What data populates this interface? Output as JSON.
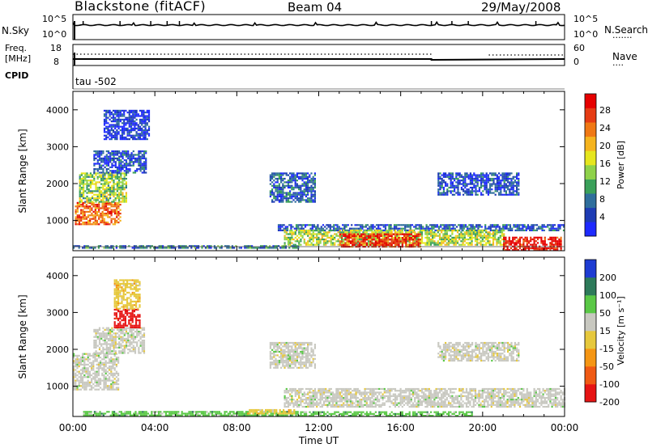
{
  "header": {
    "station": "Blackstone (fitACF)",
    "beam": "Beam 04",
    "date": "29/May/2008"
  },
  "top_panel": {
    "left_label": "N.Sky",
    "left_ticks": [
      "10^5",
      "10^0"
    ],
    "right_ticks": [
      "10^5",
      "10^0"
    ],
    "right_label": "N.Search",
    "right_legend_line": "......."
  },
  "freq_panel": {
    "left_label_1": "Freq.",
    "left_label_2": "[MHz]",
    "left_ticks": [
      "18",
      "8"
    ],
    "right_ticks": [
      "60",
      "0"
    ],
    "right_label": "Nave",
    "right_legend_line": "....",
    "cpid_label": "CPID",
    "cpid_value": "tau  -502"
  },
  "time_axis": {
    "label": "Time UT",
    "ticks": [
      "00:00",
      "04:00",
      "08:00",
      "12:00",
      "16:00",
      "20:00",
      "00:00"
    ]
  },
  "chart_data": [
    {
      "type": "heatmap",
      "name": "power",
      "ylabel": "Slant Range [km]",
      "yticks": [
        "4000",
        "3000",
        "2000",
        "1000"
      ],
      "ylim": [
        180,
        4500
      ],
      "xlim_hours": [
        0,
        24
      ],
      "colorbar": {
        "label": "Power [dB]",
        "ticks": [
          "28",
          "24",
          "20",
          "16",
          "12",
          "8",
          "4"
        ],
        "colors": [
          "#1e2aff",
          "#1e3cb4",
          "#2f6e9c",
          "#3aa05a",
          "#8fd24a",
          "#e6e61e",
          "#f5b41e",
          "#f07814",
          "#e63c14",
          "#e60000"
        ]
      },
      "regions": [
        {
          "t": [
            0.1,
            2.3
          ],
          "r": [
            900,
            1500
          ],
          "level": 0.8
        },
        {
          "t": [
            0.3,
            2.6
          ],
          "r": [
            1500,
            2300
          ],
          "level": 0.45
        },
        {
          "t": [
            1.0,
            3.6
          ],
          "r": [
            2300,
            2900
          ],
          "level": 0.15
        },
        {
          "t": [
            1.5,
            3.7
          ],
          "r": [
            3200,
            4000
          ],
          "level": 0.1
        },
        {
          "t": [
            0.0,
            11.0
          ],
          "r": [
            250,
            330
          ],
          "level": 0.25
        },
        {
          "t": [
            10.0,
            24.0
          ],
          "r": [
            750,
            900
          ],
          "level": 0.2
        },
        {
          "t": [
            10.3,
            21.0
          ],
          "r": [
            330,
            750
          ],
          "level": 0.5
        },
        {
          "t": [
            13.0,
            17.0
          ],
          "r": [
            300,
            650
          ],
          "level": 0.9
        },
        {
          "t": [
            21.0,
            23.8
          ],
          "r": [
            200,
            560
          ],
          "level": 0.95
        },
        {
          "t": [
            9.6,
            11.8
          ],
          "r": [
            1500,
            2300
          ],
          "level": 0.2
        },
        {
          "t": [
            17.8,
            21.8
          ],
          "r": [
            1700,
            2300
          ],
          "level": 0.15
        }
      ]
    },
    {
      "type": "heatmap",
      "name": "velocity",
      "ylabel": "Slant Range [km]",
      "yticks": [
        "4000",
        "3000",
        "2000",
        "1000"
      ],
      "ylim": [
        180,
        4500
      ],
      "xlim_hours": [
        0,
        24
      ],
      "colorbar": {
        "label": "Velocity [m s⁻¹]",
        "ticks": [
          "200",
          "100",
          "50",
          "15",
          "-15",
          "-50",
          "-100",
          "-200"
        ],
        "colors": [
          "#1e3cd2",
          "#2d7a5a",
          "#5ac846",
          "#c8c8c0",
          "#e6c83c",
          "#f59614",
          "#f05a14",
          "#e61414"
        ]
      },
      "regions": [
        {
          "t": [
            0.0,
            2.2
          ],
          "r": [
            900,
            1900
          ],
          "color_index": 3
        },
        {
          "t": [
            1.0,
            3.5
          ],
          "r": [
            1900,
            2600
          ],
          "color_index": 3
        },
        {
          "t": [
            2.0,
            3.3
          ],
          "r": [
            2600,
            3100
          ],
          "color_index": 7
        },
        {
          "t": [
            2.0,
            3.3
          ],
          "r": [
            3100,
            3900
          ],
          "color_index": 4
        },
        {
          "t": [
            10.3,
            24.0
          ],
          "r": [
            450,
            950
          ],
          "color_index": 3
        },
        {
          "t": [
            0.5,
            11.0
          ],
          "r": [
            220,
            330
          ],
          "color_index": 2
        },
        {
          "t": [
            11.0,
            19.5
          ],
          "r": [
            220,
            320
          ],
          "color_index": 2
        },
        {
          "t": [
            8.5,
            10.8
          ],
          "r": [
            250,
            380
          ],
          "color_index": 4
        },
        {
          "t": [
            9.6,
            11.8
          ],
          "r": [
            1500,
            2200
          ],
          "color_index": 3
        },
        {
          "t": [
            17.8,
            21.8
          ],
          "r": [
            1700,
            2200
          ],
          "color_index": 3
        }
      ]
    }
  ]
}
